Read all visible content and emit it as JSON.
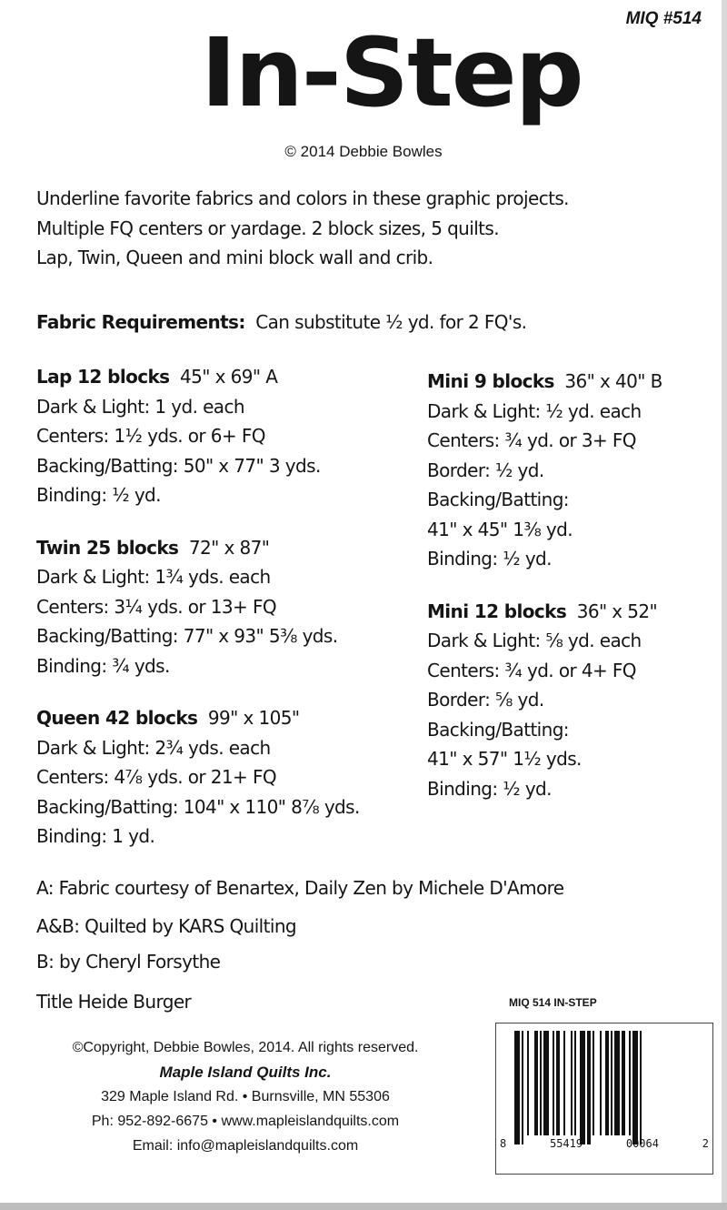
{
  "header": {
    "code": "MIQ #514",
    "logo": "In-Step",
    "byline": "© 2014  Debbie Bowles"
  },
  "intro": [
    "Underline favorite fabrics and colors in these graphic projects.",
    "Multiple FQ centers or yardage. 2 block sizes, 5 quilts.",
    "Lap, Twin, Queen and mini block wall and crib."
  ],
  "fabric_requirements": {
    "label": "Fabric Requirements:",
    "text": "Can substitute ½ yd. for 2 FQ's."
  },
  "quilts_left": [
    {
      "title": "Lap  12 blocks",
      "size": "45\" x 69\" A",
      "lines": [
        "Dark & Light:  1 yd. each",
        "Centers:  1½ yds. or 6+ FQ",
        "Backing/Batting:  50\" x 77\"  3 yds.",
        "Binding:  ½ yd."
      ]
    },
    {
      "title": "Twin  25 blocks",
      "size": "72\" x 87\"",
      "lines": [
        "Dark & Light:  1¾ yds. each",
        "Centers:  3¼ yds. or 13+ FQ",
        "Backing/Batting:  77\" x 93\"  5⅜ yds.",
        "Binding: ¾ yds."
      ]
    },
    {
      "title": "Queen 42 blocks",
      "size": "99\" x 105\"",
      "lines": [
        "Dark & Light:  2¾ yds. each",
        "Centers:  4⅞ yds. or 21+ FQ",
        "Backing/Batting: 104\" x 110\"  8⅞ yds.",
        "Binding:  1 yd."
      ]
    }
  ],
  "quilts_right": [
    {
      "title": "Mini 9 blocks",
      "size": "36\" x 40\" B",
      "lines": [
        "Dark & Light:  ½ yd. each",
        "Centers:  ¾ yd. or 3+ FQ",
        "Border:  ½ yd.",
        "Backing/Batting:",
        "41\" x 45\"  1⅜ yd.",
        "Binding: ½ yd."
      ]
    },
    {
      "title": "Mini 12 blocks",
      "size": "36\" x 52\"",
      "lines": [
        "Dark & Light: ⅝ yd. each",
        "Centers:  ¾ yd. or 4+ FQ",
        "Border:  ⅝ yd.",
        "Backing/Batting:",
        "41\" x 57\"  1½ yds.",
        "Binding: ½ yd."
      ]
    }
  ],
  "notes": [
    "A:  Fabric courtesy of Benartex, Daily Zen by Michele D'Amore",
    "A&B:  Quilted by KARS Quilting",
    "B:  by Cheryl Forsythe",
    "Title Heide Burger"
  ],
  "footer": {
    "copyright": "©Copyright, Debbie Bowles, 2014.  All rights reserved.",
    "company": "Maple Island Quilts Inc.",
    "address": "329 Maple Island Rd. • Burnsville, MN 55306",
    "phone_web": "Ph: 952-892-6675   •   www.mapleislandquilts.com",
    "email": "Email: info@mapleislandquilts.com"
  },
  "barcode": {
    "label": "MIQ 514  IN-STEP",
    "digits": [
      "8",
      "55419",
      "00064",
      "2"
    ]
  }
}
